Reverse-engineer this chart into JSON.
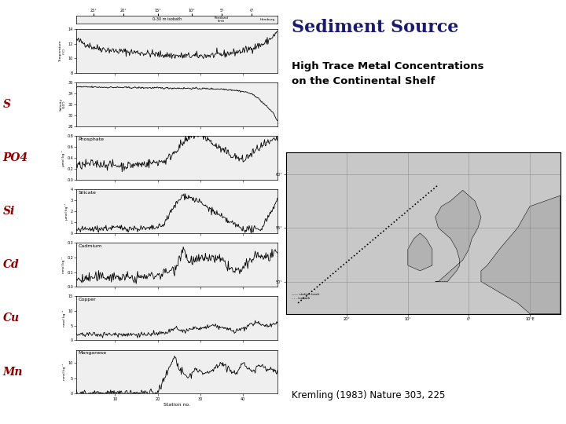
{
  "title": "Sediment Source",
  "subtitle": "High Trace Metal Concentrations\non the Continental Shelf",
  "citation": "Kremling (1983) Nature 303, 225",
  "title_color": "#1a1a6e",
  "subtitle_color": "#000000",
  "bg_color": "#ffffff",
  "labels_left": [
    "S",
    "PO4",
    "Si",
    "Cd",
    "Cu",
    "Mn"
  ],
  "labels_color": "#8b0000",
  "num_panels": 7,
  "panel_titles": [
    "",
    "",
    "Phosphate",
    "Silicate",
    "Cadmium",
    "Copper",
    "Manganese"
  ],
  "panel_ylabels": [
    "Temperature\n(°C)",
    "Salinity\n(10²)",
    "µmol kg⁻¹",
    "µmol kg⁻¹",
    "nmol kg⁻¹",
    "nmol kg⁻¹",
    "nmol kg⁻¹"
  ],
  "figsize": [
    7.2,
    5.4
  ],
  "dpi": 100,
  "left_label_panel_idx": [
    1,
    2,
    3,
    4,
    5,
    6
  ]
}
